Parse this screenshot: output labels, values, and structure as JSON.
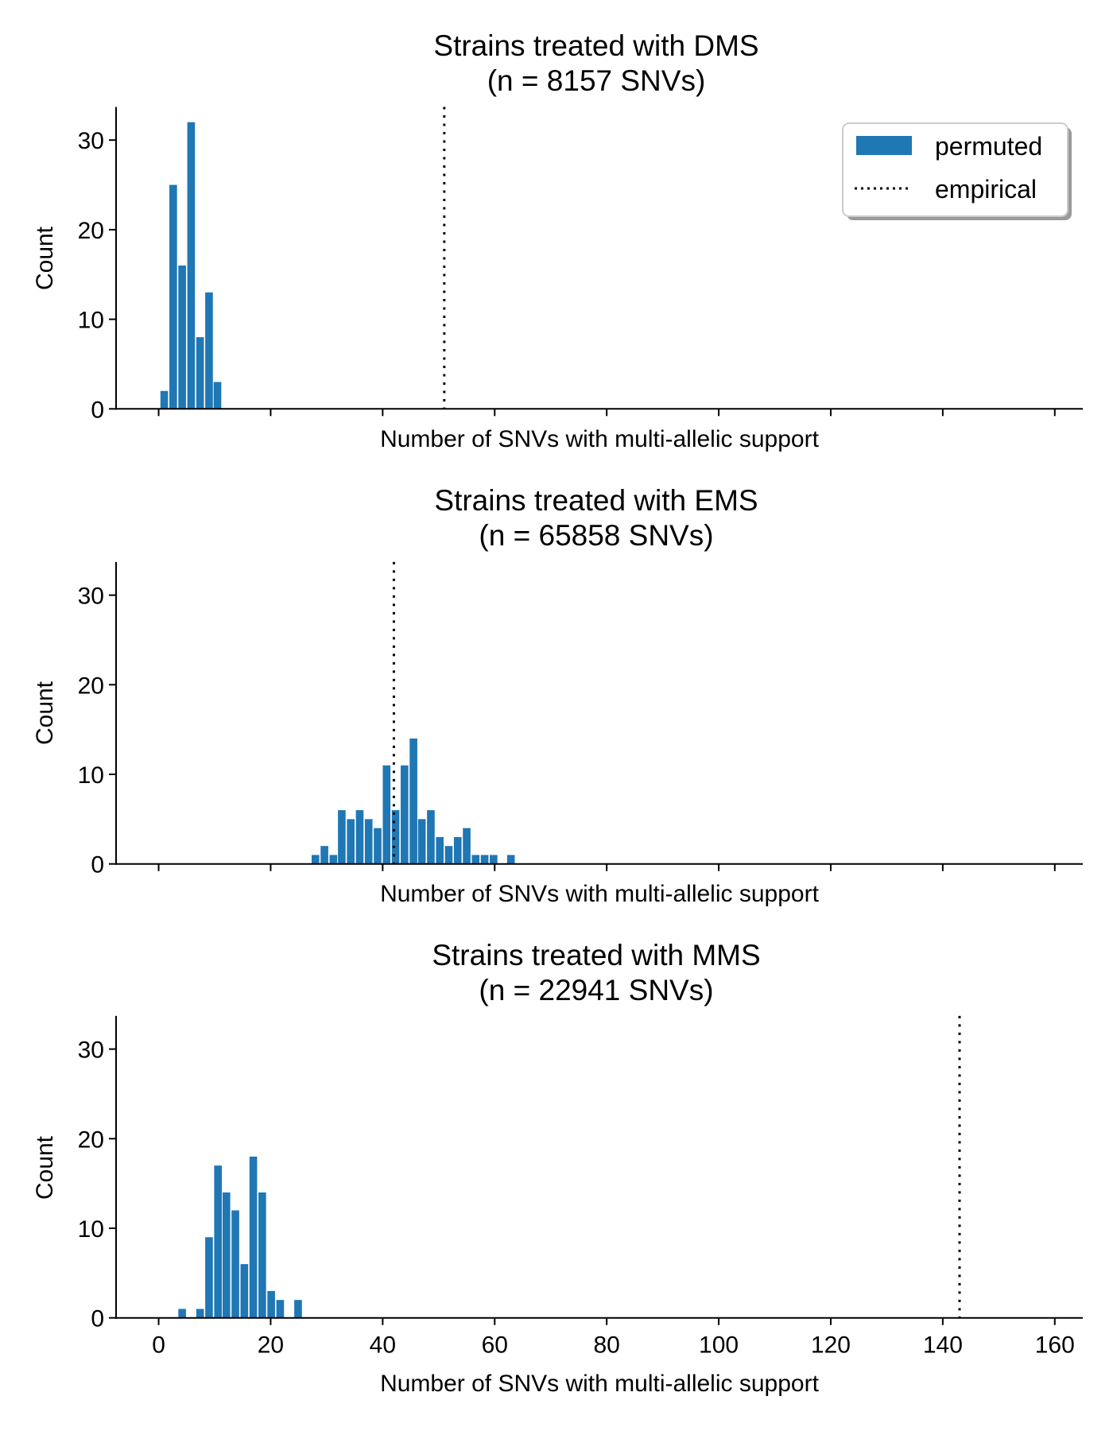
{
  "figure": {
    "legend": {
      "items": [
        {
          "label": "permuted",
          "kind": "bar"
        },
        {
          "label": "empirical",
          "kind": "dotted-line"
        }
      ],
      "placement": "top-right"
    },
    "colors": {
      "bar": "#1f77b4",
      "empirical_line": "#000000",
      "axis": "#000000"
    }
  },
  "chart_data": [
    {
      "type": "bar",
      "title": "Strains treated with DMS",
      "subtitle": "(n = 8157 SNVs)",
      "xlabel": "Number of SNVs with multi-allelic support",
      "ylabel": "Count",
      "xlim": [
        -7.6,
        165
      ],
      "ylim": [
        0,
        33.7
      ],
      "xticks": [
        0,
        20,
        40,
        60,
        80,
        100,
        120,
        140,
        160
      ],
      "xtick_labels_shown": false,
      "yticks": [
        0,
        10,
        20,
        30
      ],
      "bin_width": 1.59,
      "x": [
        1.0,
        2.6,
        4.2,
        5.8,
        7.4,
        9.0,
        10.5
      ],
      "values": [
        2,
        25,
        16,
        32,
        8,
        13,
        3
      ],
      "empirical": 51,
      "legend": true,
      "grid": false
    },
    {
      "type": "bar",
      "title": "Strains treated with EMS",
      "subtitle": "(n = 65858 SNVs)",
      "xlabel": "Number of SNVs with multi-allelic support",
      "ylabel": "Count",
      "xlim": [
        -7.6,
        165
      ],
      "ylim": [
        0,
        33.7
      ],
      "xticks": [
        0,
        20,
        40,
        60,
        80,
        100,
        120,
        140,
        160
      ],
      "xtick_labels_shown": false,
      "yticks": [
        0,
        10,
        20,
        30
      ],
      "bin_width": 1.59,
      "x": [
        28.0,
        29.6,
        31.2,
        32.7,
        34.3,
        35.9,
        37.5,
        39.1,
        40.7,
        42.3,
        43.9,
        45.5,
        47.0,
        48.6,
        50.2,
        51.8,
        53.4,
        55.0,
        56.6,
        58.2,
        59.8,
        62.9
      ],
      "values": [
        1,
        2,
        1,
        6,
        5,
        6,
        5,
        4,
        11,
        6,
        11,
        14,
        5,
        6,
        3,
        2,
        3,
        4,
        1,
        1,
        1,
        1
      ],
      "empirical": 42,
      "legend": false,
      "grid": false
    },
    {
      "type": "bar",
      "title": "Strains treated with MMS",
      "subtitle": "(n = 22941 SNVs)",
      "xlabel": "Number of SNVs with multi-allelic support",
      "ylabel": "Count",
      "xlim": [
        -7.6,
        165
      ],
      "ylim": [
        0,
        33.7
      ],
      "xticks": [
        0,
        20,
        40,
        60,
        80,
        100,
        120,
        140,
        160
      ],
      "xtick_labels_shown": true,
      "yticks": [
        0,
        10,
        20,
        30
      ],
      "bin_width": 1.59,
      "x": [
        4.2,
        7.4,
        9.0,
        10.6,
        12.1,
        13.7,
        15.3,
        16.9,
        18.5,
        20.1,
        21.7,
        24.9
      ],
      "values": [
        1,
        1,
        9,
        17,
        14,
        12,
        6,
        18,
        14,
        3,
        2,
        2
      ],
      "empirical": 143,
      "legend": false,
      "grid": false
    }
  ]
}
